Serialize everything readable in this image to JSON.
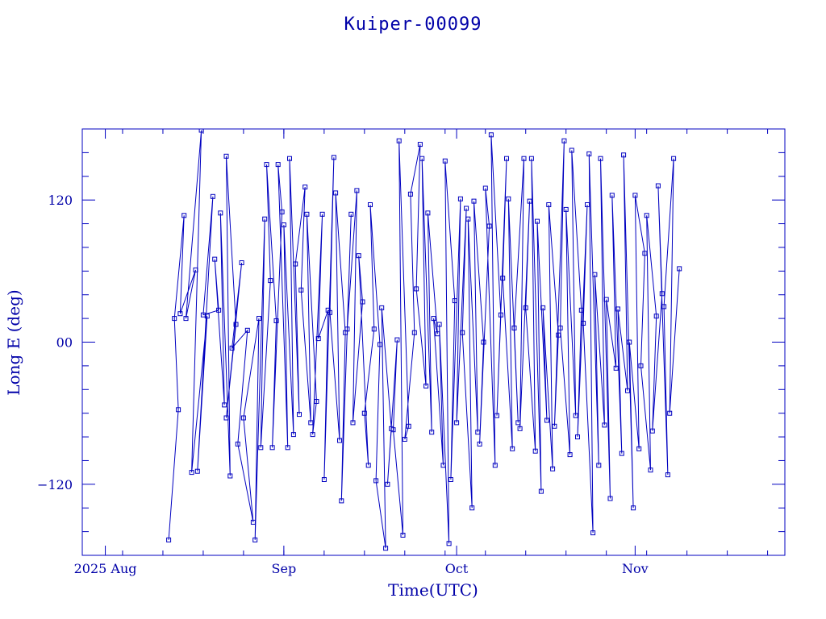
{
  "chart_data": {
    "type": "scatter",
    "title": "Kuiper-00099",
    "xlabel": "Time(UTC)",
    "ylabel": "Long E (deg)",
    "x_tick_labels": [
      "2025 Aug",
      "Sep",
      "Oct",
      "Nov"
    ],
    "y_tick_labels": [
      "−120",
      "00",
      "120"
    ],
    "y_ticks": [
      -120,
      0,
      120
    ],
    "ylim": [
      -180,
      180
    ],
    "xlim": [
      "2025-07-28",
      "2025-11-27"
    ],
    "grid": false,
    "color": "#0000c0",
    "marker": "square",
    "connected": true,
    "series": [
      {
        "values": [
          {
            "x": "2025-08-12",
            "y": -167
          },
          {
            "x": "2025-08-12",
            "y": -57
          },
          {
            "x": "2025-08-13",
            "y": 20
          },
          {
            "x": "2025-08-13",
            "y": 107
          },
          {
            "x": "2025-08-14",
            "y": 24
          },
          {
            "x": "2025-08-15",
            "y": 61
          },
          {
            "x": "2025-08-15",
            "y": 20
          },
          {
            "x": "2025-08-16",
            "y": 179
          },
          {
            "x": "2025-08-16",
            "y": -110
          },
          {
            "x": "2025-08-17",
            "y": 22
          },
          {
            "x": "2025-08-17",
            "y": -109
          },
          {
            "x": "2025-08-18",
            "y": 123
          },
          {
            "x": "2025-08-18",
            "y": 23
          },
          {
            "x": "2025-08-19",
            "y": 27
          },
          {
            "x": "2025-08-20",
            "y": 70
          },
          {
            "x": "2025-08-20",
            "y": -53
          },
          {
            "x": "2025-08-21",
            "y": 109
          },
          {
            "x": "2025-08-21",
            "y": -113
          },
          {
            "x": "2025-08-22",
            "y": 157
          },
          {
            "x": "2025-08-22",
            "y": 15
          },
          {
            "x": "2025-08-22",
            "y": -64
          },
          {
            "x": "2025-08-23",
            "y": 67
          },
          {
            "x": "2025-08-23",
            "y": -5
          },
          {
            "x": "2025-08-24",
            "y": 10
          },
          {
            "x": "2025-08-24",
            "y": -86
          },
          {
            "x": "2025-08-25",
            "y": -152
          },
          {
            "x": "2025-08-25",
            "y": -64
          },
          {
            "x": "2025-08-26",
            "y": 20
          },
          {
            "x": "2025-08-27",
            "y": -167
          },
          {
            "x": "2025-08-27",
            "y": 104
          },
          {
            "x": "2025-08-28",
            "y": -89
          },
          {
            "x": "2025-08-28",
            "y": 52
          },
          {
            "x": "2025-08-29",
            "y": 150
          },
          {
            "x": "2025-08-29",
            "y": 18
          },
          {
            "x": "2025-08-30",
            "y": -89
          },
          {
            "x": "2025-08-30",
            "y": 110
          },
          {
            "x": "2025-08-31",
            "y": 150
          },
          {
            "x": "2025-08-31",
            "y": -89
          },
          {
            "x": "2025-09-01",
            "y": 99
          },
          {
            "x": "2025-09-01",
            "y": -78
          },
          {
            "x": "2025-09-02",
            "y": 155
          },
          {
            "x": "2025-09-02",
            "y": -61
          },
          {
            "x": "2025-09-03",
            "y": 66
          },
          {
            "x": "2025-09-03",
            "y": 131
          },
          {
            "x": "2025-09-04",
            "y": 44
          },
          {
            "x": "2025-09-04",
            "y": -68
          },
          {
            "x": "2025-09-05",
            "y": 108
          },
          {
            "x": "2025-09-05",
            "y": -50
          },
          {
            "x": "2025-09-06",
            "y": -78
          },
          {
            "x": "2025-09-06",
            "y": 108
          },
          {
            "x": "2025-09-07",
            "y": 3
          },
          {
            "x": "2025-09-07",
            "y": 27
          },
          {
            "x": "2025-09-08",
            "y": -116
          },
          {
            "x": "2025-09-08",
            "y": 156
          },
          {
            "x": "2025-09-09",
            "y": 25
          },
          {
            "x": "2025-09-09",
            "y": -83
          },
          {
            "x": "2025-09-10",
            "y": 126
          },
          {
            "x": "2025-09-10",
            "y": 8
          },
          {
            "x": "2025-09-11",
            "y": -134
          },
          {
            "x": "2025-09-11",
            "y": 108
          },
          {
            "x": "2025-09-12",
            "y": 11
          },
          {
            "x": "2025-09-12",
            "y": 128
          },
          {
            "x": "2025-09-13",
            "y": -68
          },
          {
            "x": "2025-09-13",
            "y": 34
          },
          {
            "x": "2025-09-14",
            "y": 73
          },
          {
            "x": "2025-09-14",
            "y": -104
          },
          {
            "x": "2025-09-15",
            "y": -60
          },
          {
            "x": "2025-09-15",
            "y": 11
          },
          {
            "x": "2025-09-16",
            "y": 116
          },
          {
            "x": "2025-09-16",
            "y": -2
          },
          {
            "x": "2025-09-17",
            "y": -117
          },
          {
            "x": "2025-09-17",
            "y": -174
          },
          {
            "x": "2025-09-18",
            "y": 29
          },
          {
            "x": "2025-09-18",
            "y": -73
          },
          {
            "x": "2025-09-19",
            "y": -120
          },
          {
            "x": "2025-09-19",
            "y": 2
          },
          {
            "x": "2025-09-20",
            "y": -74
          },
          {
            "x": "2025-09-20",
            "y": -163
          },
          {
            "x": "2025-09-21",
            "y": 170
          },
          {
            "x": "2025-09-21",
            "y": -71
          },
          {
            "x": "2025-09-22",
            "y": -82
          },
          {
            "x": "2025-09-22",
            "y": 8
          },
          {
            "x": "2025-09-23",
            "y": 125
          },
          {
            "x": "2025-09-23",
            "y": 167
          },
          {
            "x": "2025-09-24",
            "y": 45
          },
          {
            "x": "2025-09-24",
            "y": -37
          },
          {
            "x": "2025-09-25",
            "y": 155
          },
          {
            "x": "2025-09-25",
            "y": -76
          },
          {
            "x": "2025-09-26",
            "y": 109
          },
          {
            "x": "2025-09-26",
            "y": 7
          },
          {
            "x": "2025-09-27",
            "y": 20
          },
          {
            "x": "2025-09-27",
            "y": -104
          },
          {
            "x": "2025-09-28",
            "y": 15
          },
          {
            "x": "2025-09-28",
            "y": -170
          },
          {
            "x": "2025-09-29",
            "y": 153
          },
          {
            "x": "2025-09-29",
            "y": 35
          },
          {
            "x": "2025-09-30",
            "y": -116
          },
          {
            "x": "2025-09-30",
            "y": 121
          },
          {
            "x": "2025-10-01",
            "y": -68
          },
          {
            "x": "2025-10-01",
            "y": 113
          },
          {
            "x": "2025-10-02",
            "y": 8
          },
          {
            "x": "2025-10-02",
            "y": -140
          },
          {
            "x": "2025-10-03",
            "y": 104
          },
          {
            "x": "2025-10-03",
            "y": -76
          },
          {
            "x": "2025-10-04",
            "y": 119
          },
          {
            "x": "2025-10-04",
            "y": 0
          },
          {
            "x": "2025-10-05",
            "y": -86
          },
          {
            "x": "2025-10-05",
            "y": 98
          },
          {
            "x": "2025-10-06",
            "y": 130
          },
          {
            "x": "2025-10-06",
            "y": -104
          },
          {
            "x": "2025-10-07",
            "y": 175
          },
          {
            "x": "2025-10-07",
            "y": 23
          },
          {
            "x": "2025-10-08",
            "y": -62
          },
          {
            "x": "2025-10-08",
            "y": 155
          },
          {
            "x": "2025-10-09",
            "y": 54
          },
          {
            "x": "2025-10-09",
            "y": -90
          },
          {
            "x": "2025-10-10",
            "y": 121
          },
          {
            "x": "2025-10-10",
            "y": -68
          },
          {
            "x": "2025-10-11",
            "y": 12
          },
          {
            "x": "2025-10-11",
            "y": 155
          },
          {
            "x": "2025-10-12",
            "y": -73
          },
          {
            "x": "2025-10-12",
            "y": 119
          },
          {
            "x": "2025-10-13",
            "y": 29
          },
          {
            "x": "2025-10-13",
            "y": -92
          },
          {
            "x": "2025-10-14",
            "y": 155
          },
          {
            "x": "2025-10-14",
            "y": -126
          },
          {
            "x": "2025-10-15",
            "y": 102
          },
          {
            "x": "2025-10-15",
            "y": -66
          },
          {
            "x": "2025-10-16",
            "y": 29
          },
          {
            "x": "2025-10-16",
            "y": -107
          },
          {
            "x": "2025-10-17",
            "y": 116
          },
          {
            "x": "2025-10-17",
            "y": 6
          },
          {
            "x": "2025-10-18",
            "y": -71
          },
          {
            "x": "2025-10-18",
            "y": 170
          },
          {
            "x": "2025-10-19",
            "y": 12
          },
          {
            "x": "2025-10-19",
            "y": -95
          },
          {
            "x": "2025-10-20",
            "y": 112
          },
          {
            "x": "2025-10-20",
            "y": -62
          },
          {
            "x": "2025-10-21",
            "y": 162
          },
          {
            "x": "2025-10-21",
            "y": 27
          },
          {
            "x": "2025-10-22",
            "y": -80
          },
          {
            "x": "2025-10-22",
            "y": 116
          },
          {
            "x": "2025-10-23",
            "y": 16
          },
          {
            "x": "2025-10-23",
            "y": -161
          },
          {
            "x": "2025-10-24",
            "y": 159
          },
          {
            "x": "2025-10-24",
            "y": -104
          },
          {
            "x": "2025-10-25",
            "y": 57
          },
          {
            "x": "2025-10-25",
            "y": -70
          },
          {
            "x": "2025-10-26",
            "y": 155
          },
          {
            "x": "2025-10-26",
            "y": -132
          },
          {
            "x": "2025-10-27",
            "y": 36
          },
          {
            "x": "2025-10-27",
            "y": -22
          },
          {
            "x": "2025-10-28",
            "y": 124
          },
          {
            "x": "2025-10-28",
            "y": -94
          },
          {
            "x": "2025-10-29",
            "y": 28
          },
          {
            "x": "2025-10-29",
            "y": -41
          },
          {
            "x": "2025-10-30",
            "y": 158
          },
          {
            "x": "2025-10-30",
            "y": -140
          },
          {
            "x": "2025-10-31",
            "y": 0
          },
          {
            "x": "2025-10-31",
            "y": -90
          },
          {
            "x": "2025-11-01",
            "y": 124
          },
          {
            "x": "2025-11-01",
            "y": 75
          },
          {
            "x": "2025-11-02",
            "y": -20
          },
          {
            "x": "2025-11-02",
            "y": -108
          },
          {
            "x": "2025-11-03",
            "y": 107
          },
          {
            "x": "2025-11-03",
            "y": 22
          },
          {
            "x": "2025-11-04",
            "y": -75
          },
          {
            "x": "2025-11-04",
            "y": 41
          },
          {
            "x": "2025-11-05",
            "y": 132
          },
          {
            "x": "2025-11-05",
            "y": -112
          },
          {
            "x": "2025-11-06",
            "y": 30
          },
          {
            "x": "2025-11-06",
            "y": 155
          },
          {
            "x": "2025-11-07",
            "y": -60
          },
          {
            "x": "2025-11-07",
            "y": 62
          }
        ]
      }
    ]
  }
}
